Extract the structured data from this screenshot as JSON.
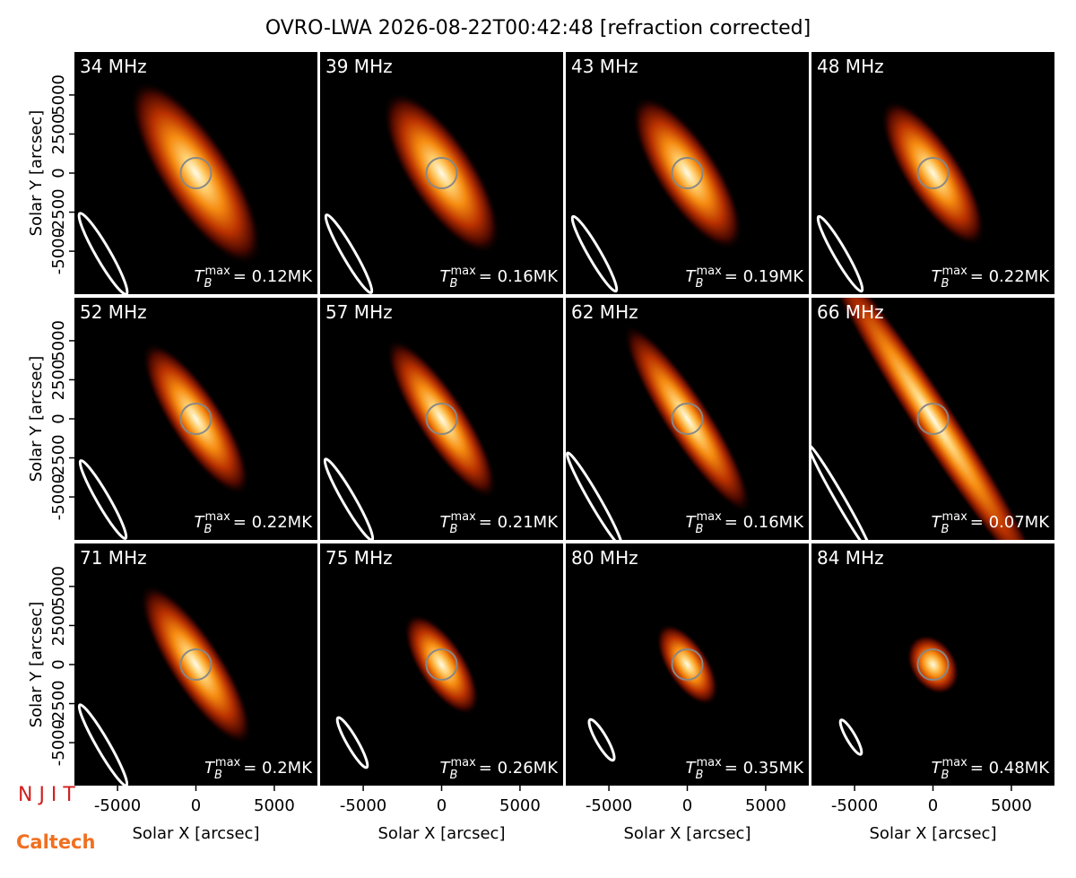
{
  "title": "OVRO-LWA 2026-08-22T00:42:48 [refraction corrected]",
  "x_label": "Solar X [arcsec]",
  "y_label": "Solar Y [arcsec]",
  "xlim": [
    -7750,
    7750
  ],
  "ylim": [
    -7750,
    7750
  ],
  "xticks": [
    -5000,
    0,
    5000
  ],
  "yticks": [
    -5000,
    -2500,
    0,
    2500,
    5000
  ],
  "tb_symbol": "T",
  "tb_sub": "B",
  "tb_sup": "max",
  "panels": [
    {
      "label": "34 MHz",
      "tb_label": "= 0.12MK"
    },
    {
      "label": "39 MHz",
      "tb_label": "= 0.16MK"
    },
    {
      "label": "43 MHz",
      "tb_label": "= 0.19MK"
    },
    {
      "label": "48 MHz",
      "tb_label": "= 0.22MK"
    },
    {
      "label": "52 MHz",
      "tb_label": "= 0.22MK"
    },
    {
      "label": "57 MHz",
      "tb_label": "= 0.21MK"
    },
    {
      "label": "62 MHz",
      "tb_label": "= 0.16MK"
    },
    {
      "label": "66 MHz",
      "tb_label": "= 0.07MK"
    },
    {
      "label": "71 MHz",
      "tb_label": "= 0.2MK"
    },
    {
      "label": "75 MHz",
      "tb_label": "= 0.26MK"
    },
    {
      "label": "80 MHz",
      "tb_label": "= 0.35MK"
    },
    {
      "label": "84 MHz",
      "tb_label": "= 0.48MK"
    }
  ],
  "logos": [
    "N J I T",
    "Caltech"
  ]
}
